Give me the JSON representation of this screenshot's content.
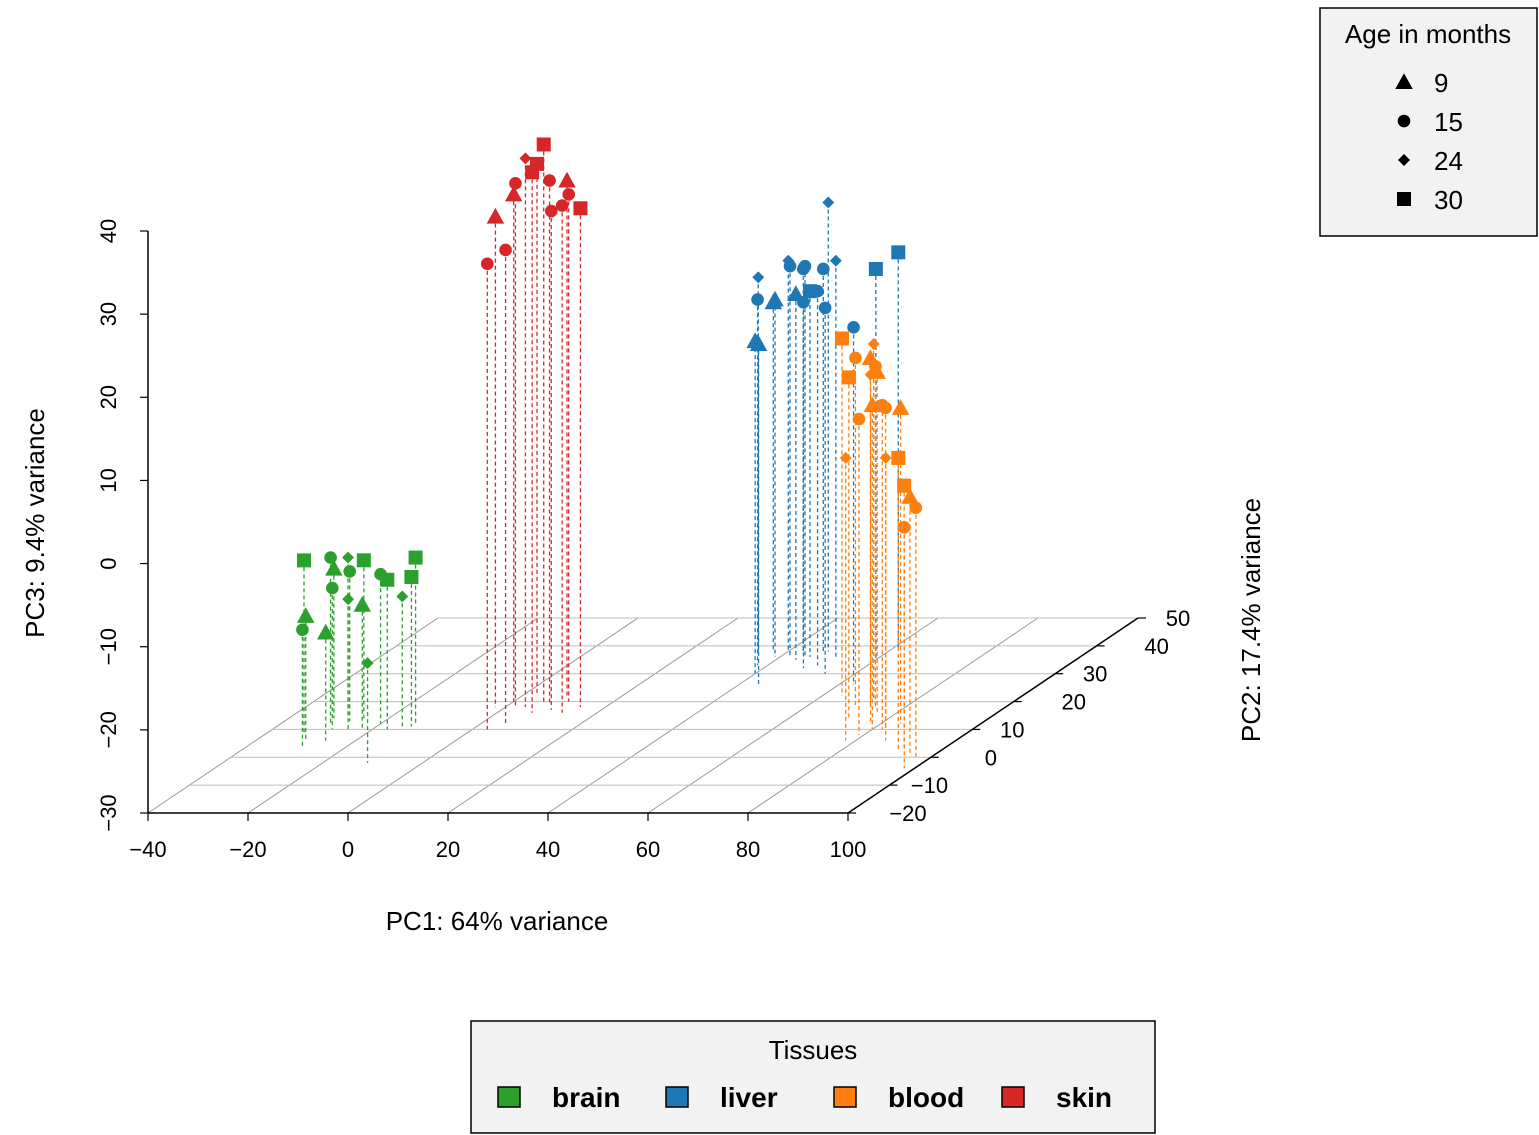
{
  "chart_data": {
    "type": "scatter",
    "subtype": "scatterplot3d",
    "axes": {
      "x": {
        "label": "PC1: 64% variance",
        "range": [
          -40,
          100
        ],
        "ticks": [
          "−40",
          "−20",
          "0",
          "20",
          "40",
          "60",
          "80",
          "100"
        ]
      },
      "y": {
        "label": "PC2: 17.4% variance",
        "range": [
          -20,
          50
        ],
        "ticks": [
          "−20",
          "−10",
          "0",
          "10",
          "20",
          "30",
          "40",
          "50"
        ]
      },
      "z": {
        "label": "PC3: 9.4% variance",
        "range": [
          -30,
          40
        ],
        "ticks": [
          "−30",
          "−20",
          "−10",
          "0",
          "10",
          "20",
          "30",
          "40"
        ]
      }
    },
    "grid": true,
    "drop_lines": true,
    "shape_legend": {
      "title": "Age in months",
      "placement": "top-right",
      "entries": [
        {
          "label": "9",
          "shape": "triangle"
        },
        {
          "label": "15",
          "shape": "circle"
        },
        {
          "label": "24",
          "shape": "diamond"
        },
        {
          "label": "30",
          "shape": "square"
        }
      ]
    },
    "color_legend": {
      "title": "Tissues",
      "placement": "bottom",
      "entries": [
        {
          "label": "brain",
          "color": "#2ca02c"
        },
        {
          "label": "liver",
          "color": "#1f77b4"
        },
        {
          "label": "blood",
          "color": "#ff7f0e"
        },
        {
          "label": "skin",
          "color": "#d62728"
        }
      ]
    },
    "series": [
      {
        "name": "brain",
        "color": "#2ca02c",
        "points": [
          {
            "x": -32,
            "y": 8,
            "z": -9,
            "shape": "square"
          },
          {
            "x": -31,
            "y": 14,
            "z": -12,
            "shape": "triangle"
          },
          {
            "x": -30,
            "y": 12,
            "z": -10,
            "shape": "circle"
          },
          {
            "x": -29,
            "y": 15,
            "z": -11,
            "shape": "diamond"
          },
          {
            "x": -28,
            "y": 10,
            "z": -13,
            "shape": "circle"
          },
          {
            "x": -30,
            "y": 6,
            "z": -15,
            "shape": "triangle"
          },
          {
            "x": -27,
            "y": 13,
            "z": -12,
            "shape": "circle"
          },
          {
            "x": -25,
            "y": 14,
            "z": -11,
            "shape": "square"
          },
          {
            "x": -24,
            "y": 9,
            "z": -14,
            "shape": "diamond"
          },
          {
            "x": -22,
            "y": 10,
            "z": -15,
            "shape": "triangle"
          },
          {
            "x": -20,
            "y": 12,
            "z": -12,
            "shape": "circle"
          },
          {
            "x": -17,
            "y": 10,
            "z": -12,
            "shape": "square"
          },
          {
            "x": -13,
            "y": 12,
            "z": -10,
            "shape": "square"
          },
          {
            "x": -14,
            "y": 10,
            "z": -14,
            "shape": "diamond"
          },
          {
            "x": -13,
            "y": 11,
            "z": -12,
            "shape": "square"
          },
          {
            "x": -11,
            "y": -2,
            "z": -18,
            "shape": "diamond"
          },
          {
            "x": -29,
            "y": 4,
            "z": -16,
            "shape": "circle"
          },
          {
            "x": -26,
            "y": 6,
            "z": -17,
            "shape": "triangle"
          }
        ]
      },
      {
        "name": "skin",
        "color": "#d62728",
        "points": [
          {
            "x": -2,
            "y": 18,
            "z": 29,
            "shape": "triangle"
          },
          {
            "x": 0,
            "y": 20,
            "z": 31,
            "shape": "triangle"
          },
          {
            "x": 2,
            "y": 18,
            "z": 33,
            "shape": "circle"
          },
          {
            "x": 3,
            "y": 22,
            "z": 34,
            "shape": "square"
          },
          {
            "x": 4,
            "y": 18,
            "z": 36,
            "shape": "diamond"
          },
          {
            "x": 6,
            "y": 20,
            "z": 37,
            "shape": "square"
          },
          {
            "x": 7,
            "y": 16,
            "z": 35,
            "shape": "square"
          },
          {
            "x": 8,
            "y": 19,
            "z": 33,
            "shape": "circle"
          },
          {
            "x": 9,
            "y": 22,
            "z": 32,
            "shape": "triangle"
          },
          {
            "x": 10,
            "y": 17,
            "z": 30,
            "shape": "circle"
          },
          {
            "x": 11,
            "y": 20,
            "z": 31,
            "shape": "circle"
          },
          {
            "x": 13,
            "y": 16,
            "z": 31,
            "shape": "circle"
          },
          {
            "x": 15,
            "y": 18,
            "z": 30,
            "shape": "square"
          },
          {
            "x": 5,
            "y": 12,
            "z": 27,
            "shape": "circle"
          },
          {
            "x": 3,
            "y": 10,
            "z": 26,
            "shape": "circle"
          }
        ]
      },
      {
        "name": "liver",
        "color": "#1f77b4",
        "points": [
          {
            "x": 34,
            "y": 38,
            "z": 15,
            "shape": "diamond"
          },
          {
            "x": 37,
            "y": 38,
            "z": 12,
            "shape": "triangle"
          },
          {
            "x": 38,
            "y": 33,
            "z": 14,
            "shape": "circle"
          },
          {
            "x": 39,
            "y": 36,
            "z": 13,
            "shape": "triangle"
          },
          {
            "x": 40,
            "y": 38,
            "z": 17,
            "shape": "diamond"
          },
          {
            "x": 42,
            "y": 36,
            "z": 17,
            "shape": "circle"
          },
          {
            "x": 43,
            "y": 38,
            "z": 16,
            "shape": "circle"
          },
          {
            "x": 44,
            "y": 35,
            "z": 14,
            "shape": "triangle"
          },
          {
            "x": 45,
            "y": 36,
            "z": 17,
            "shape": "circle"
          },
          {
            "x": 46,
            "y": 36,
            "z": 14,
            "shape": "square"
          },
          {
            "x": 47,
            "y": 38,
            "z": 16,
            "shape": "circle"
          },
          {
            "x": 48,
            "y": 38,
            "z": 24,
            "shape": "diamond"
          },
          {
            "x": 48,
            "y": 32,
            "z": 14,
            "shape": "circle"
          },
          {
            "x": 50,
            "y": 33,
            "z": 15,
            "shape": "circle"
          },
          {
            "x": 52,
            "y": 35,
            "z": 18,
            "shape": "diamond"
          },
          {
            "x": 54,
            "y": 30,
            "z": 14,
            "shape": "circle"
          },
          {
            "x": 40,
            "y": 30,
            "z": 10,
            "shape": "triangle"
          },
          {
            "x": 44,
            "y": 26,
            "z": 11,
            "shape": "triangle"
          },
          {
            "x": 60,
            "y": 35,
            "z": 17,
            "shape": "square"
          },
          {
            "x": 62,
            "y": 38,
            "z": 18,
            "shape": "square"
          },
          {
            "x": 63,
            "y": 26,
            "z": 13,
            "shape": "circle"
          }
        ]
      },
      {
        "name": "blood",
        "color": "#ff7f0e",
        "points": [
          {
            "x": 64,
            "y": 22,
            "z": 13,
            "shape": "square"
          },
          {
            "x": 70,
            "y": 18,
            "z": 12,
            "shape": "circle"
          },
          {
            "x": 72,
            "y": 20,
            "z": 13,
            "shape": "diamond"
          },
          {
            "x": 73,
            "y": 18,
            "z": 12,
            "shape": "triangle"
          },
          {
            "x": 72,
            "y": 14,
            "z": 11,
            "shape": "square"
          },
          {
            "x": 74,
            "y": 18,
            "z": 11,
            "shape": "circle"
          },
          {
            "x": 76,
            "y": 16,
            "z": 11,
            "shape": "triangle"
          },
          {
            "x": 78,
            "y": 12,
            "z": 12,
            "shape": "diamond"
          },
          {
            "x": 79,
            "y": 8,
            "z": 8,
            "shape": "circle"
          },
          {
            "x": 80,
            "y": 10,
            "z": 9,
            "shape": "triangle"
          },
          {
            "x": 81,
            "y": 12,
            "z": 8,
            "shape": "circle"
          },
          {
            "x": 82,
            "y": 10,
            "z": 9,
            "shape": "circle"
          },
          {
            "x": 84,
            "y": 12,
            "z": 8,
            "shape": "triangle"
          },
          {
            "x": 78,
            "y": 6,
            "z": 4,
            "shape": "diamond"
          },
          {
            "x": 86,
            "y": 6,
            "z": 4,
            "shape": "diamond"
          },
          {
            "x": 91,
            "y": 3,
            "z": 5,
            "shape": "square"
          },
          {
            "x": 93,
            "y": 2,
            "z": 2,
            "shape": "square"
          },
          {
            "x": 95,
            "y": 1,
            "z": 1,
            "shape": "triangle"
          },
          {
            "x": 97,
            "y": 0,
            "z": 0,
            "shape": "circle"
          },
          {
            "x": 98,
            "y": -4,
            "z": -1,
            "shape": "circle"
          }
        ]
      }
    ]
  }
}
